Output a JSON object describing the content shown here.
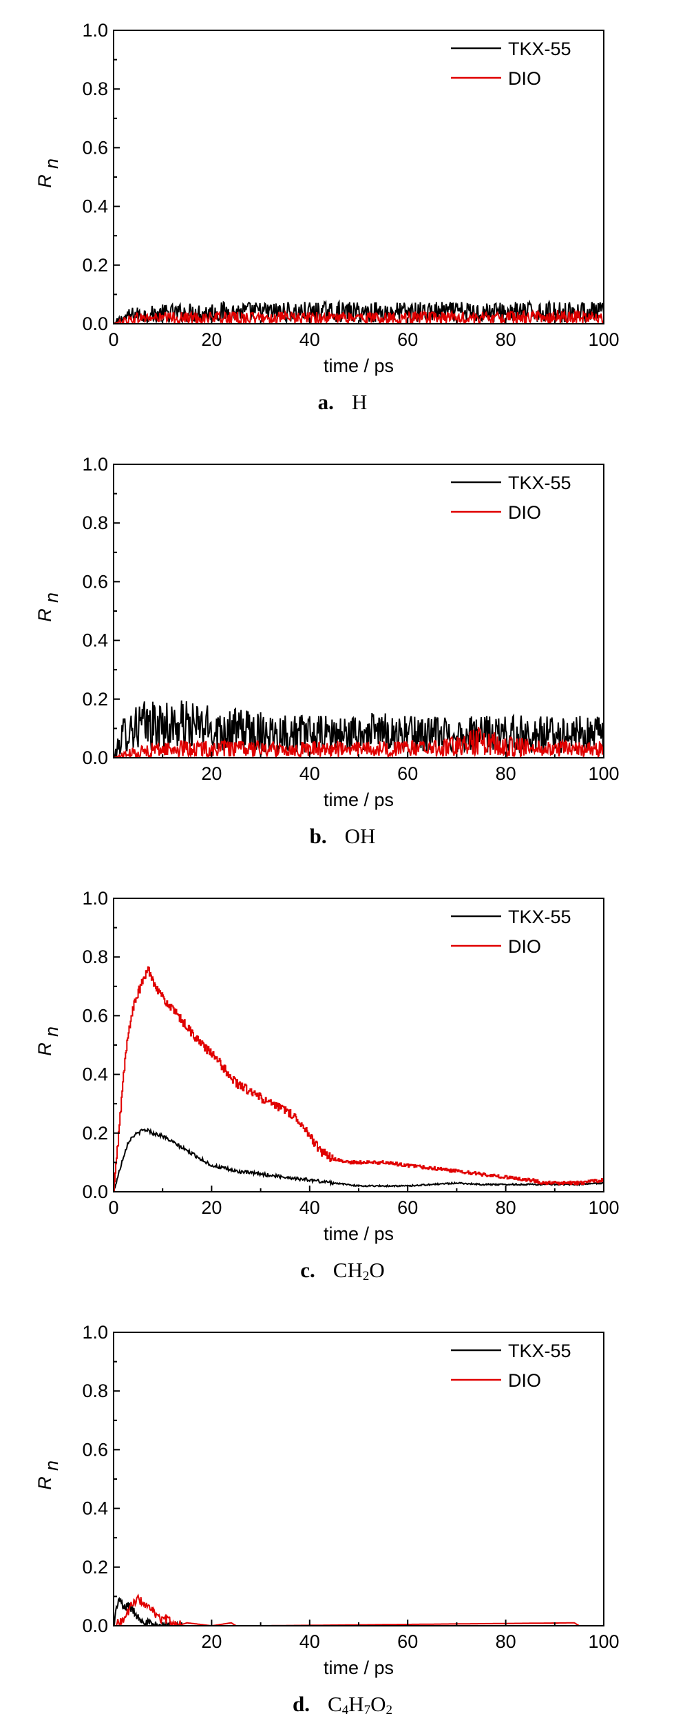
{
  "chart_data": [
    {
      "type": "line",
      "caption_letter": "a.",
      "caption_species": [
        {
          "t": "H",
          "sub": ""
        }
      ],
      "xlabel": "time / ps",
      "ylabel_main": "R",
      "ylabel_sub": "n",
      "xlim": [
        0,
        100
      ],
      "ylim": [
        0,
        1.0
      ],
      "xticks": [
        "0",
        "20",
        "40",
        "60",
        "80",
        "100"
      ],
      "yticks": [
        "0.0",
        "0.2",
        "0.4",
        "0.6",
        "0.8",
        "1.0"
      ],
      "legend_position": "top-right",
      "series": [
        {
          "name": "TKX-55",
          "color": "#000000",
          "x": [
            0,
            1,
            2,
            4,
            6,
            10,
            20,
            30,
            40,
            50,
            60,
            70,
            80,
            90,
            100
          ],
          "y": [
            0.0,
            0.01,
            0.02,
            0.03,
            0.03,
            0.035,
            0.04,
            0.04,
            0.04,
            0.04,
            0.04,
            0.04,
            0.04,
            0.04,
            0.04
          ]
        },
        {
          "name": "DIO",
          "color": "#e00000",
          "x": [
            0,
            2,
            5,
            10,
            20,
            30,
            40,
            50,
            60,
            70,
            80,
            90,
            100
          ],
          "y": [
            0.0,
            0.01,
            0.02,
            0.02,
            0.02,
            0.02,
            0.02,
            0.02,
            0.02,
            0.02,
            0.02,
            0.025,
            0.02
          ]
        }
      ]
    },
    {
      "type": "line",
      "caption_letter": "b.",
      "caption_species": [
        {
          "t": "OH",
          "sub": ""
        }
      ],
      "xlabel": "time / ps",
      "ylabel_main": "R",
      "ylabel_sub": "n",
      "xlim": [
        0,
        100
      ],
      "ylim": [
        0,
        1.0
      ],
      "xticks": [
        "",
        "20",
        "40",
        "60",
        "80",
        "100"
      ],
      "yticks": [
        "0.0",
        "0.2",
        "0.4",
        "0.6",
        "0.8",
        "1.0"
      ],
      "legend_position": "top-right",
      "series": [
        {
          "name": "TKX-55",
          "color": "#000000",
          "x": [
            0,
            1,
            2,
            3,
            5,
            10,
            15,
            20,
            30,
            40,
            50,
            55,
            60,
            70,
            80,
            90,
            100
          ],
          "y": [
            0.0,
            0.04,
            0.08,
            0.1,
            0.11,
            0.11,
            0.11,
            0.1,
            0.09,
            0.08,
            0.08,
            0.09,
            0.08,
            0.08,
            0.08,
            0.08,
            0.08
          ]
        },
        {
          "name": "DIO",
          "color": "#e00000",
          "x": [
            0,
            2,
            5,
            10,
            20,
            30,
            40,
            50,
            60,
            70,
            75,
            80,
            90,
            100
          ],
          "y": [
            0.0,
            0.01,
            0.02,
            0.03,
            0.03,
            0.03,
            0.03,
            0.03,
            0.03,
            0.04,
            0.06,
            0.04,
            0.03,
            0.03
          ]
        }
      ]
    },
    {
      "type": "line",
      "caption_letter": "c.",
      "caption_species": [
        {
          "t": "CH",
          "sub": "2"
        },
        {
          "t": "O",
          "sub": ""
        }
      ],
      "xlabel": "time / ps",
      "ylabel_main": "R",
      "ylabel_sub": "n",
      "xlim": [
        0,
        100
      ],
      "ylim": [
        0,
        1.0
      ],
      "xticks": [
        "0",
        "20",
        "40",
        "60",
        "80",
        "100"
      ],
      "yticks": [
        "0.0",
        "0.2",
        "0.4",
        "0.6",
        "0.8",
        "1.0"
      ],
      "legend_position": "top-right",
      "series": [
        {
          "name": "TKX-55",
          "color": "#000000",
          "x": [
            0,
            1,
            2,
            3,
            4,
            5,
            6,
            7,
            8,
            10,
            12,
            15,
            18,
            20,
            25,
            30,
            35,
            40,
            45,
            50,
            55,
            60,
            65,
            70,
            75,
            80,
            85,
            90,
            95,
            100
          ],
          "y": [
            0.0,
            0.06,
            0.12,
            0.17,
            0.19,
            0.2,
            0.21,
            0.21,
            0.2,
            0.19,
            0.17,
            0.14,
            0.11,
            0.09,
            0.07,
            0.06,
            0.05,
            0.04,
            0.03,
            0.02,
            0.02,
            0.02,
            0.025,
            0.03,
            0.025,
            0.025,
            0.025,
            0.025,
            0.025,
            0.03
          ]
        },
        {
          "name": "DIO",
          "color": "#e00000",
          "x": [
            0,
            1,
            2,
            3,
            4,
            5,
            6,
            7,
            8,
            9,
            10,
            12,
            15,
            18,
            20,
            22,
            25,
            28,
            30,
            33,
            35,
            38,
            40,
            42,
            45,
            48,
            50,
            55,
            60,
            65,
            70,
            75,
            80,
            85,
            88,
            90,
            95,
            100
          ],
          "y": [
            0.0,
            0.2,
            0.4,
            0.55,
            0.63,
            0.68,
            0.72,
            0.76,
            0.72,
            0.69,
            0.66,
            0.62,
            0.56,
            0.5,
            0.47,
            0.43,
            0.37,
            0.34,
            0.32,
            0.29,
            0.28,
            0.24,
            0.19,
            0.14,
            0.11,
            0.1,
            0.1,
            0.1,
            0.09,
            0.08,
            0.07,
            0.06,
            0.05,
            0.04,
            0.03,
            0.03,
            0.03,
            0.04
          ]
        }
      ]
    },
    {
      "type": "line",
      "caption_letter": "d.",
      "caption_species": [
        {
          "t": "C",
          "sub": "4"
        },
        {
          "t": "H",
          "sub": "7"
        },
        {
          "t": "O",
          "sub": "2"
        }
      ],
      "xlabel": "time / ps",
      "ylabel_main": "R",
      "ylabel_sub": "n",
      "xlim": [
        0,
        100
      ],
      "ylim": [
        0,
        1.0
      ],
      "xticks": [
        "",
        "20",
        "40",
        "60",
        "80",
        "100"
      ],
      "yticks": [
        "0.0",
        "0.2",
        "0.4",
        "0.6",
        "0.8",
        "1.0"
      ],
      "legend_position": "top-right",
      "series": [
        {
          "name": "TKX-55",
          "color": "#000000",
          "x": [
            0,
            0.5,
            1,
            1.5,
            2,
            3,
            4,
            5,
            6,
            7,
            8,
            100
          ],
          "y": [
            0.0,
            0.05,
            0.09,
            0.08,
            0.06,
            0.07,
            0.05,
            0.03,
            0.02,
            0.01,
            0.0,
            0.0
          ]
        },
        {
          "name": "DIO",
          "color": "#e00000",
          "x": [
            0,
            2,
            3,
            4,
            5,
            6,
            7,
            8,
            9,
            10,
            11,
            12,
            13,
            15,
            20,
            24,
            25,
            30,
            94,
            95,
            100
          ],
          "y": [
            0.0,
            0.02,
            0.05,
            0.08,
            0.09,
            0.08,
            0.06,
            0.05,
            0.03,
            0.02,
            0.02,
            0.01,
            0.0,
            0.01,
            0.0,
            0.01,
            0.0,
            0.0,
            0.01,
            0.0,
            0.0
          ]
        }
      ]
    }
  ]
}
